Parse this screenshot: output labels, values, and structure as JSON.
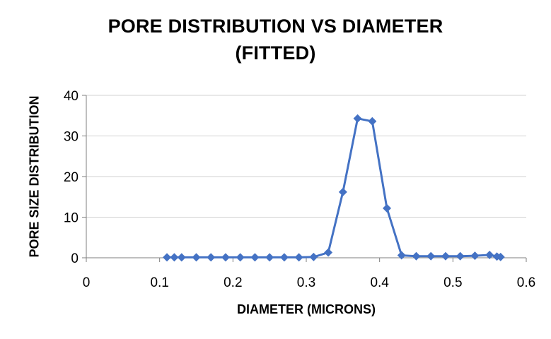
{
  "chart_data": {
    "type": "line",
    "title_lines": [
      "PORE DISTRIBUTION VS DIAMETER",
      "(FITTED)"
    ],
    "xlabel": "DIAMETER (MICRONS)",
    "ylabel": "PORE SIZE DISTRIBUTION",
    "xlim": [
      0,
      0.6
    ],
    "ylim": [
      0,
      40
    ],
    "x_ticks": [
      0,
      0.1,
      0.2,
      0.3,
      0.4,
      0.5,
      0.6
    ],
    "x_tick_labels": [
      "0",
      "0.1",
      "0.2",
      "0.3",
      "0.4",
      "0.5",
      "0.6"
    ],
    "y_ticks": [
      0,
      10,
      20,
      30,
      40
    ],
    "y_tick_labels": [
      "0",
      "10",
      "20",
      "30",
      "40"
    ],
    "grid": "horizontal",
    "series": [
      {
        "color": "#4472C4",
        "marker": "diamond",
        "x": [
          0.11,
          0.12,
          0.13,
          0.15,
          0.17,
          0.19,
          0.21,
          0.23,
          0.25,
          0.27,
          0.29,
          0.31,
          0.33,
          0.35,
          0.37,
          0.39,
          0.41,
          0.43,
          0.45,
          0.47,
          0.49,
          0.51,
          0.53,
          0.55,
          0.56,
          0.565
        ],
        "y": [
          0.1,
          0.1,
          0.1,
          0.1,
          0.1,
          0.1,
          0.1,
          0.1,
          0.1,
          0.1,
          0.1,
          0.2,
          1.3,
          16.2,
          34.3,
          33.6,
          12.2,
          0.6,
          0.4,
          0.4,
          0.4,
          0.4,
          0.5,
          0.7,
          0.3,
          0.2
        ]
      }
    ]
  }
}
